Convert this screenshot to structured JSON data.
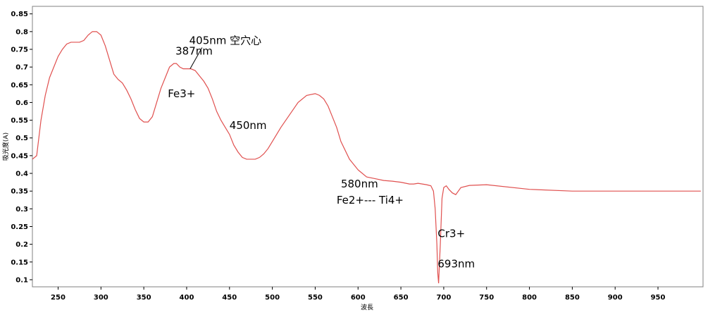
{
  "chart_data": {
    "type": "line",
    "xlabel": "波長",
    "ylabel": "吸光度(A)",
    "xlim": [
      220,
      1000
    ],
    "ylim": [
      0.08,
      0.86
    ],
    "x_ticks": [
      "250",
      "300",
      "350",
      "400",
      "450",
      "500",
      "550",
      "600",
      "650",
      "700",
      "750",
      "800",
      "850",
      "900",
      "950"
    ],
    "y_ticks": [
      "0.85",
      "0.8",
      "0.75",
      "0.7",
      "0.65",
      "0.6",
      "0.55",
      "0.5",
      "0.45",
      "0.4",
      "0.35",
      "0.3",
      "0.25",
      "0.2",
      "0.15",
      "0.1"
    ],
    "grid": false,
    "line_color": "#e0504f",
    "series": [
      {
        "x": [
          220,
          225,
          230,
          235,
          240,
          245,
          250,
          255,
          260,
          265,
          270,
          275,
          280,
          285,
          290,
          295,
          300,
          305,
          310,
          315,
          320,
          325,
          330,
          335,
          340,
          345,
          350,
          355,
          360,
          365,
          370,
          375,
          380,
          385,
          388,
          392,
          396,
          400,
          405,
          410,
          415,
          420,
          425,
          430,
          435,
          440,
          445,
          450,
          455,
          460,
          465,
          470,
          475,
          480,
          485,
          490,
          495,
          500,
          510,
          520,
          530,
          540,
          550,
          555,
          560,
          565,
          570,
          575,
          580,
          590,
          600,
          610,
          620,
          630,
          640,
          650,
          660,
          665,
          670,
          675,
          680,
          685,
          688,
          690,
          692,
          693,
          694,
          696,
          698,
          700,
          703,
          706,
          710,
          714,
          720,
          730,
          750,
          800,
          850,
          900,
          950,
          1000
        ],
        "y": [
          0.44,
          0.45,
          0.55,
          0.62,
          0.67,
          0.7,
          0.73,
          0.75,
          0.765,
          0.77,
          0.77,
          0.77,
          0.775,
          0.79,
          0.8,
          0.8,
          0.79,
          0.76,
          0.72,
          0.68,
          0.665,
          0.655,
          0.635,
          0.61,
          0.58,
          0.555,
          0.545,
          0.545,
          0.56,
          0.6,
          0.64,
          0.67,
          0.7,
          0.71,
          0.71,
          0.7,
          0.695,
          0.695,
          0.695,
          0.69,
          0.675,
          0.66,
          0.64,
          0.61,
          0.575,
          0.55,
          0.53,
          0.51,
          0.48,
          0.46,
          0.445,
          0.44,
          0.44,
          0.44,
          0.445,
          0.455,
          0.47,
          0.49,
          0.53,
          0.565,
          0.6,
          0.62,
          0.625,
          0.62,
          0.61,
          0.59,
          0.56,
          0.53,
          0.49,
          0.44,
          0.41,
          0.39,
          0.385,
          0.38,
          0.378,
          0.375,
          0.37,
          0.37,
          0.372,
          0.37,
          0.368,
          0.365,
          0.35,
          0.3,
          0.2,
          0.12,
          0.09,
          0.2,
          0.33,
          0.36,
          0.365,
          0.355,
          0.345,
          0.34,
          0.36,
          0.366,
          0.368,
          0.355,
          0.35,
          0.35,
          0.35,
          0.35
        ]
      }
    ],
    "annotations": [
      {
        "text": "387nm",
        "x": 387,
        "y": 0.735
      },
      {
        "text": "405nm 空穴心",
        "x": 403,
        "y": 0.765
      },
      {
        "text": "Fe3+",
        "x": 378,
        "y": 0.615
      },
      {
        "text": "450nm",
        "x": 450,
        "y": 0.525
      },
      {
        "text": "580nm",
        "x": 580,
        "y": 0.36
      },
      {
        "text": "Fe2+--- Ti4+",
        "x": 575,
        "y": 0.315
      },
      {
        "text": "Cr3+",
        "x": 693,
        "y": 0.22
      },
      {
        "text": "693nm",
        "x": 693,
        "y": 0.135
      }
    ]
  }
}
